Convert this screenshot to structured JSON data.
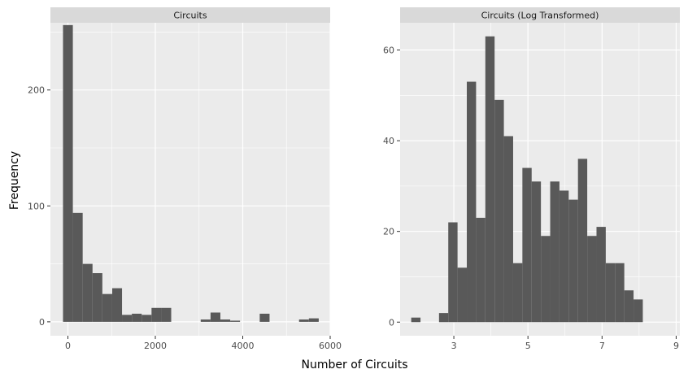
{
  "shared": {
    "xlabel": "Number of Circuits",
    "ylabel": "Frequency"
  },
  "colors": {
    "panel_bg": "#ebebeb",
    "strip_bg": "#d9d9d9",
    "bar": "#595959",
    "grid": "#ffffff"
  },
  "chart_data": [
    {
      "type": "bar",
      "title": "Circuits",
      "xlim": [
        -400,
        6000
      ],
      "ylim": [
        -12,
        258
      ],
      "xticks": [
        0,
        2000,
        4000,
        6000
      ],
      "yticks": [
        0,
        100,
        200
      ],
      "bin_width": 225,
      "bins": [
        {
          "x0": -112,
          "x1": 113,
          "count": 256
        },
        {
          "x0": 113,
          "x1": 338,
          "count": 94
        },
        {
          "x0": 338,
          "x1": 563,
          "count": 50
        },
        {
          "x0": 563,
          "x1": 788,
          "count": 42
        },
        {
          "x0": 788,
          "x1": 1013,
          "count": 24
        },
        {
          "x0": 1013,
          "x1": 1238,
          "count": 29
        },
        {
          "x0": 1238,
          "x1": 1463,
          "count": 6
        },
        {
          "x0": 1463,
          "x1": 1688,
          "count": 7
        },
        {
          "x0": 1688,
          "x1": 1913,
          "count": 6
        },
        {
          "x0": 1913,
          "x1": 2138,
          "count": 12
        },
        {
          "x0": 2138,
          "x1": 2363,
          "count": 12
        },
        {
          "x0": 2363,
          "x1": 2588,
          "count": 0
        },
        {
          "x0": 2588,
          "x1": 2813,
          "count": 0
        },
        {
          "x0": 2813,
          "x1": 3038,
          "count": 0
        },
        {
          "x0": 3038,
          "x1": 3263,
          "count": 2
        },
        {
          "x0": 3263,
          "x1": 3488,
          "count": 8
        },
        {
          "x0": 3488,
          "x1": 3713,
          "count": 2
        },
        {
          "x0": 3713,
          "x1": 3938,
          "count": 1
        },
        {
          "x0": 3938,
          "x1": 4163,
          "count": 0
        },
        {
          "x0": 4163,
          "x1": 4388,
          "count": 0
        },
        {
          "x0": 4388,
          "x1": 4613,
          "count": 7
        },
        {
          "x0": 4613,
          "x1": 4838,
          "count": 0
        },
        {
          "x0": 4838,
          "x1": 5063,
          "count": 0
        },
        {
          "x0": 5063,
          "x1": 5288,
          "count": 0
        },
        {
          "x0": 5288,
          "x1": 5513,
          "count": 2
        },
        {
          "x0": 5513,
          "x1": 5738,
          "count": 3
        }
      ]
    },
    {
      "type": "bar",
      "title": "Circuits (Log Transformed)",
      "xlim": [
        1.55,
        9.1
      ],
      "ylim": [
        -3,
        66
      ],
      "xticks": [
        3,
        5,
        7,
        9
      ],
      "yticks": [
        0,
        20,
        40,
        60
      ],
      "bin_width": 0.25,
      "bins": [
        {
          "x0": 1.85,
          "x1": 2.1,
          "count": 1
        },
        {
          "x0": 2.1,
          "x1": 2.35,
          "count": 0
        },
        {
          "x0": 2.35,
          "x1": 2.6,
          "count": 0
        },
        {
          "x0": 2.6,
          "x1": 2.85,
          "count": 2
        },
        {
          "x0": 2.85,
          "x1": 3.1,
          "count": 22
        },
        {
          "x0": 3.1,
          "x1": 3.35,
          "count": 12
        },
        {
          "x0": 3.35,
          "x1": 3.6,
          "count": 53
        },
        {
          "x0": 3.6,
          "x1": 3.85,
          "count": 23
        },
        {
          "x0": 3.85,
          "x1": 4.1,
          "count": 63
        },
        {
          "x0": 4.1,
          "x1": 4.35,
          "count": 49
        },
        {
          "x0": 4.35,
          "x1": 4.6,
          "count": 41
        },
        {
          "x0": 4.6,
          "x1": 4.85,
          "count": 13
        },
        {
          "x0": 4.85,
          "x1": 5.1,
          "count": 34
        },
        {
          "x0": 5.1,
          "x1": 5.35,
          "count": 31
        },
        {
          "x0": 5.35,
          "x1": 5.6,
          "count": 19
        },
        {
          "x0": 5.6,
          "x1": 5.85,
          "count": 31
        },
        {
          "x0": 5.85,
          "x1": 6.1,
          "count": 29
        },
        {
          "x0": 6.1,
          "x1": 6.35,
          "count": 27
        },
        {
          "x0": 6.35,
          "x1": 6.6,
          "count": 36
        },
        {
          "x0": 6.6,
          "x1": 6.85,
          "count": 19
        },
        {
          "x0": 6.85,
          "x1": 7.1,
          "count": 21
        },
        {
          "x0": 7.1,
          "x1": 7.35,
          "count": 13
        },
        {
          "x0": 7.35,
          "x1": 7.6,
          "count": 13
        },
        {
          "x0": 7.6,
          "x1": 7.85,
          "count": 7
        },
        {
          "x0": 7.85,
          "x1": 8.1,
          "count": 5
        }
      ]
    }
  ]
}
